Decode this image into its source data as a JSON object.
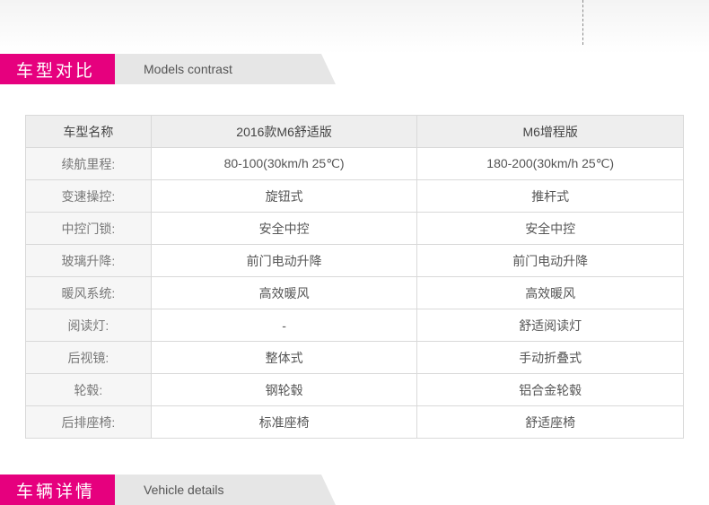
{
  "colors": {
    "brand_pink": "#e6007e",
    "grey_bg": "#e6e6e6",
    "border": "#d9d9d9",
    "header_bg": "#eeeeee",
    "label_bg": "#f6f6f6",
    "text": "#555555"
  },
  "section1": {
    "title_cn": "车型对比",
    "title_en": "Models contrast"
  },
  "section2": {
    "title_cn": "车辆详情",
    "title_en": "Vehicle details"
  },
  "table": {
    "columns": [
      "车型名称",
      "2016款M6舒适版",
      "M6增程版"
    ],
    "rows": [
      [
        "续航里程:",
        "80-100(30km/h 25℃)",
        "180-200(30km/h 25℃)"
      ],
      [
        "变速操控:",
        "旋钮式",
        "推杆式"
      ],
      [
        "中控门锁:",
        "安全中控",
        "安全中控"
      ],
      [
        "玻璃升降:",
        "前门电动升降",
        "前门电动升降"
      ],
      [
        "暖风系统:",
        "高效暖风",
        "高效暖风"
      ],
      [
        "阅读灯:",
        "-",
        "舒适阅读灯"
      ],
      [
        "后视镜:",
        "整体式",
        "手动折叠式"
      ],
      [
        "轮毂:",
        "钢轮毂",
        "铝合金轮毂"
      ],
      [
        "后排座椅:",
        "标准座椅",
        "舒适座椅"
      ]
    ]
  }
}
